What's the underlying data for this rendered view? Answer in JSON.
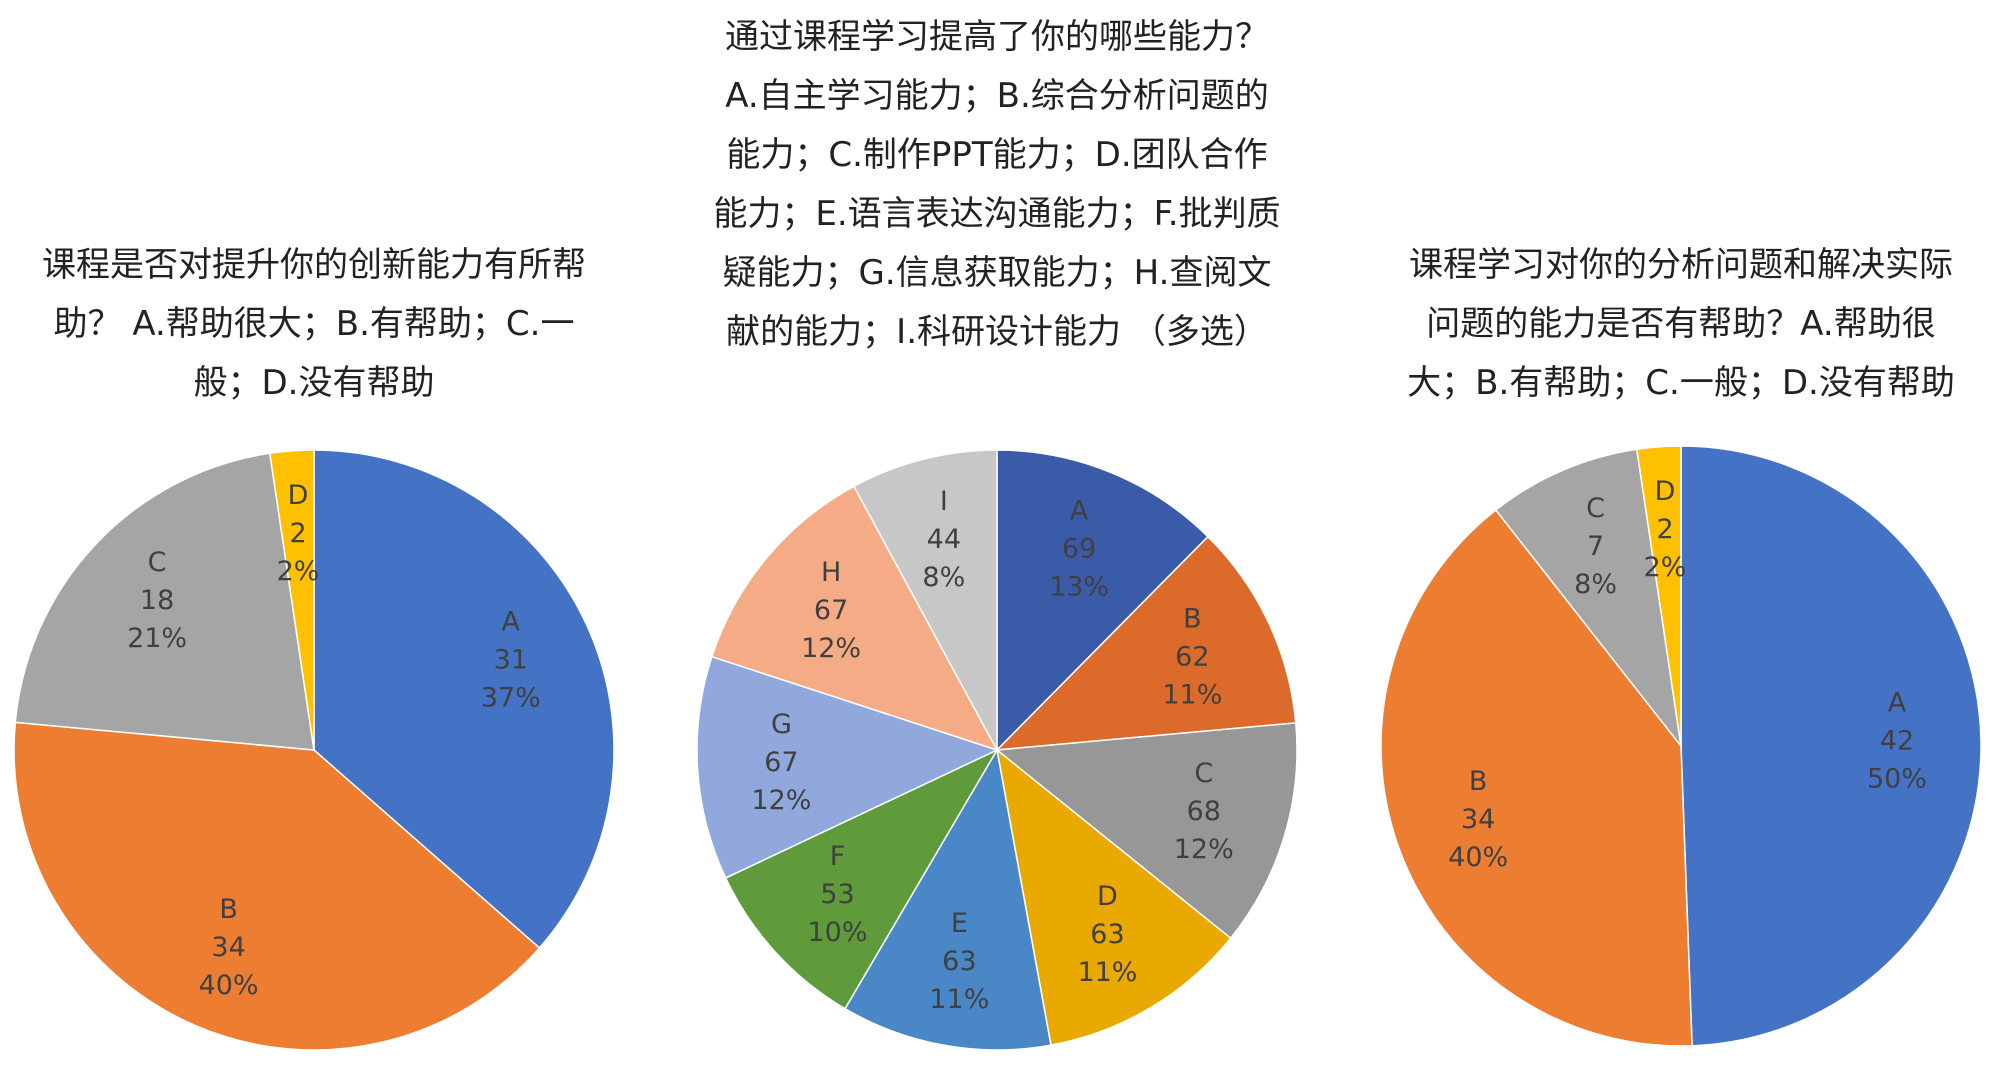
{
  "chart_data": [
    {
      "type": "pie",
      "title": "课程是否对提升你的创新能力有所帮助？ A.帮助很大；B.有帮助；C.一般；D.没有帮助",
      "categories": [
        "A",
        "B",
        "C",
        "D"
      ],
      "values": [
        31,
        34,
        18,
        2
      ],
      "percent_labels": [
        "37%",
        "40%",
        "21%",
        "2%"
      ],
      "colors": [
        "#4472c4",
        "#ed7d31",
        "#a5a5a5",
        "#ffc000"
      ]
    },
    {
      "type": "pie",
      "title": "通过课程学习提高了你的哪些能力？A.自主学习能力；B.综合分析问题的能力；C.制作PPT能力；D.团队合作能力；E.语言表达沟通能力；F.批判质疑能力；G.信息获取能力；H.查阅文献的能力；I.科研设计能力 （多选）",
      "categories": [
        "A",
        "B",
        "C",
        "D",
        "E",
        "F",
        "G",
        "H",
        "I"
      ],
      "values": [
        69,
        62,
        68,
        63,
        63,
        53,
        67,
        67,
        44
      ],
      "percent_labels": [
        "13%",
        "11%",
        "12%",
        "11%",
        "11%",
        "10%",
        "12%",
        "12%",
        "8%"
      ],
      "colors": [
        "#3a5ca8",
        "#dc6a2a",
        "#979797",
        "#e9a900",
        "#4a87c6",
        "#5f9a3b",
        "#90a8dc",
        "#f5ac86",
        "#c7c7c7"
      ]
    },
    {
      "type": "pie",
      "title": "课程学习对你的分析问题和解决实际问题的能力是否有帮助？A.帮助很大；B.有帮助；C.一般；D.没有帮助",
      "categories": [
        "A",
        "B",
        "C",
        "D"
      ],
      "values": [
        42,
        34,
        7,
        2
      ],
      "percent_labels": [
        "50%",
        "40%",
        "8%",
        "2%"
      ],
      "colors": [
        "#4472c4",
        "#ed7d31",
        "#a5a5a5",
        "#ffc000"
      ]
    }
  ]
}
